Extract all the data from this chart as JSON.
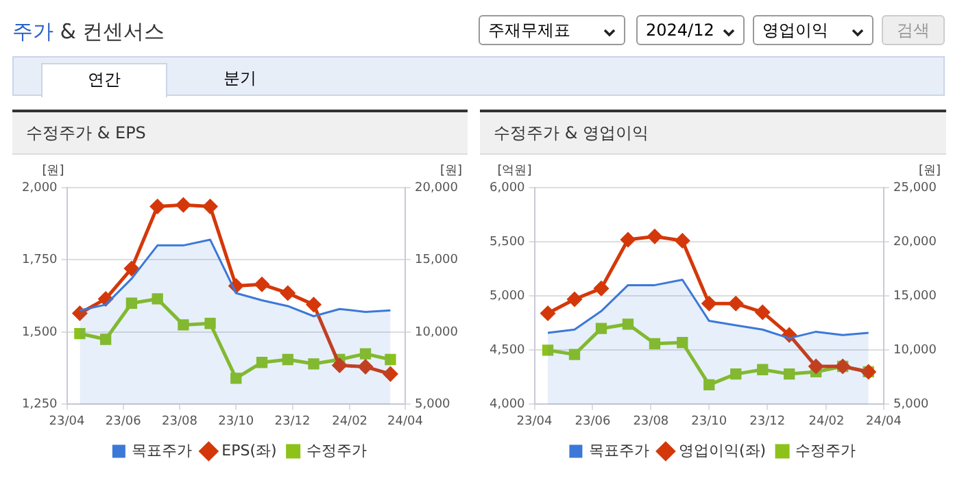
{
  "chart_data": [
    {
      "type": "other",
      "title": "주가 & 컨센서스",
      "annotations": [
        "주재무제표",
        "2024/12",
        "영업이익",
        "검색",
        "연간",
        "분기"
      ]
    },
    {
      "type": "line",
      "title": "수정주가 & EPS",
      "ylabel": "[원]",
      "y2label": "[원]",
      "x": [
        "2023-04-15",
        "2023-05-13",
        "2023-06-10",
        "2023-07-08",
        "2023-08-05",
        "2023-09-03",
        "2023-10-01",
        "2023-10-29",
        "2023-11-26",
        "2023-12-24",
        "2024-01-21",
        "2024-02-18",
        "2024-03-16"
      ],
      "xlim": [
        "2023-04",
        "2024-04"
      ],
      "xticks": [
        {
          "value": "2023-04",
          "label": "23/04"
        },
        {
          "value": "2023-06",
          "label": "23/06"
        },
        {
          "value": "2023-08",
          "label": "23/08"
        },
        {
          "value": "2023-10",
          "label": "23/10"
        },
        {
          "value": "2023-12",
          "label": "23/12"
        },
        {
          "value": "2024-02",
          "label": "24/02"
        },
        {
          "value": "2024-04",
          "label": "24/04"
        }
      ],
      "ylim": [
        1250,
        2000
      ],
      "yticks": [
        {
          "value": 1250,
          "label": "1,250"
        },
        {
          "value": 1500,
          "label": "1,500"
        },
        {
          "value": 1750,
          "label": "1,750"
        },
        {
          "value": 2000,
          "label": "2,000"
        }
      ],
      "y2lim": [
        5000,
        20000
      ],
      "y2ticks": [
        {
          "value": 5000,
          "label": "5,000"
        },
        {
          "value": 10000,
          "label": "10,000"
        },
        {
          "value": 15000,
          "label": "15,000"
        },
        {
          "value": 20000,
          "label": "20,000"
        }
      ],
      "grid": "y",
      "legend": "bottom",
      "series": [
        {
          "name": "목표주가",
          "type": "area",
          "axis": "y2",
          "color": "#3c78d8",
          "marker": "none",
          "values": [
            11500,
            11900,
            13700,
            16000,
            16000,
            16400,
            12700,
            12200,
            11800,
            11100,
            11600,
            11400,
            11500
          ]
        },
        {
          "name": "EPS(좌)",
          "type": "line",
          "color": "#d4380a",
          "marker": "diamond",
          "values": [
            1565,
            1615,
            1720,
            1935,
            1940,
            1935,
            1660,
            1665,
            1635,
            1595,
            1385,
            1380,
            1355
          ]
        },
        {
          "name": "수정주가",
          "type": "line",
          "axis": "y2",
          "color": "#8cc21a",
          "marker": "square",
          "values": [
            9900,
            9500,
            12000,
            12300,
            10500,
            10600,
            6800,
            7900,
            8100,
            7800,
            8100,
            8500,
            8100
          ]
        }
      ]
    },
    {
      "type": "line",
      "title": "수정주가 & 영업이익",
      "ylabel": "[억원]",
      "y2label": "[원]",
      "x": [
        "2023-04-15",
        "2023-05-13",
        "2023-06-10",
        "2023-07-08",
        "2023-08-05",
        "2023-09-03",
        "2023-10-01",
        "2023-10-29",
        "2023-11-26",
        "2023-12-24",
        "2024-01-21",
        "2024-02-18",
        "2024-03-16"
      ],
      "xlim": [
        "2023-04",
        "2024-04"
      ],
      "xticks": [
        {
          "value": "2023-04",
          "label": "23/04"
        },
        {
          "value": "2023-06",
          "label": "23/06"
        },
        {
          "value": "2023-08",
          "label": "23/08"
        },
        {
          "value": "2023-10",
          "label": "23/10"
        },
        {
          "value": "2023-12",
          "label": "23/12"
        },
        {
          "value": "2024-02",
          "label": "24/02"
        },
        {
          "value": "2024-04",
          "label": "24/04"
        }
      ],
      "ylim": [
        4000,
        6000
      ],
      "yticks": [
        {
          "value": 4000,
          "label": "4,000"
        },
        {
          "value": 4500,
          "label": "4,500"
        },
        {
          "value": 5000,
          "label": "5,000"
        },
        {
          "value": 5500,
          "label": "5,500"
        },
        {
          "value": 6000,
          "label": "6,000"
        }
      ],
      "y2lim": [
        5000,
        25000
      ],
      "y2ticks": [
        {
          "value": 5000,
          "label": "5,000"
        },
        {
          "value": 10000,
          "label": "10,000"
        },
        {
          "value": 15000,
          "label": "15,000"
        },
        {
          "value": 20000,
          "label": "20,000"
        },
        {
          "value": 25000,
          "label": "25,000"
        }
      ],
      "grid": "y",
      "legend": "bottom",
      "series": [
        {
          "name": "목표주가",
          "type": "area",
          "axis": "y2",
          "color": "#3c78d8",
          "marker": "none",
          "values": [
            11600,
            11900,
            13600,
            16000,
            16000,
            16500,
            12700,
            12300,
            11900,
            11100,
            11700,
            11400,
            11600
          ]
        },
        {
          "name": "영업이익(좌)",
          "type": "line",
          "color": "#d4380a",
          "marker": "diamond",
          "values": [
            4840,
            4970,
            5070,
            5520,
            5550,
            5510,
            4930,
            4930,
            4850,
            4640,
            4350,
            4350,
            4300
          ]
        },
        {
          "name": "수정주가",
          "type": "line",
          "axis": "y2",
          "color": "#8cc21a",
          "marker": "square",
          "values": [
            10000,
            9600,
            12000,
            12400,
            10600,
            10700,
            6800,
            7800,
            8200,
            7800,
            8000,
            8500,
            8000
          ]
        }
      ]
    }
  ]
}
